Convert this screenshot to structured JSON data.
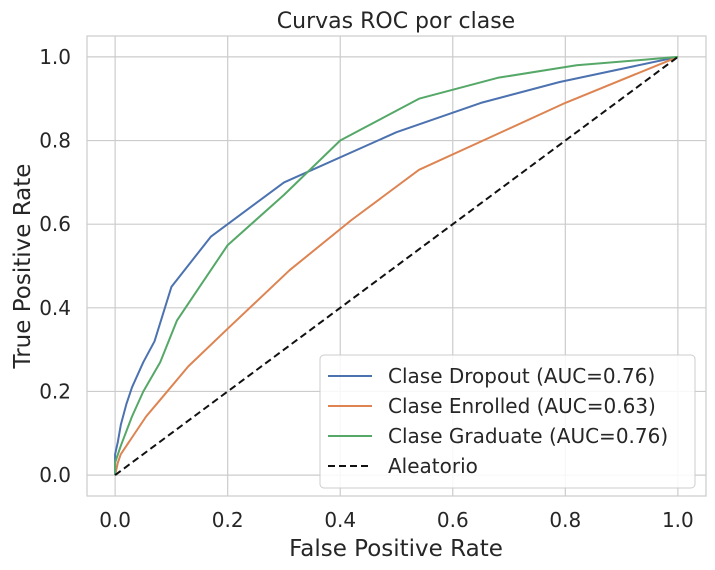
{
  "chart_data": {
    "type": "line",
    "title": "Curvas ROC por clase",
    "xlabel": "False Positive Rate",
    "ylabel": "True Positive Rate",
    "xlim": [
      -0.05,
      1.05
    ],
    "ylim": [
      -0.05,
      1.05
    ],
    "xticks": [
      "0.0",
      "0.2",
      "0.4",
      "0.6",
      "0.8",
      "1.0"
    ],
    "yticks": [
      "0.0",
      "0.2",
      "0.4",
      "0.6",
      "0.8",
      "1.0"
    ],
    "grid": true,
    "legend_position": "lower-right",
    "series": [
      {
        "name": "Clase Dropout (AUC=0.76)",
        "color": "#4c72b0",
        "dash": "solid",
        "x": [
          0.0,
          0.0,
          0.005,
          0.01,
          0.02,
          0.03,
          0.05,
          0.07,
          0.1,
          0.17,
          0.3,
          0.5,
          0.65,
          0.79,
          1.0
        ],
        "y": [
          0.0,
          0.05,
          0.08,
          0.12,
          0.17,
          0.21,
          0.27,
          0.32,
          0.45,
          0.57,
          0.7,
          0.82,
          0.89,
          0.94,
          1.0
        ]
      },
      {
        "name": "Clase Enrolled (AUC=0.63)",
        "color": "#dd8452",
        "dash": "solid",
        "x": [
          0.0,
          0.005,
          0.01,
          0.03,
          0.055,
          0.08,
          0.13,
          0.2,
          0.31,
          0.42,
          0.54,
          0.67,
          0.8,
          1.0
        ],
        "y": [
          0.0,
          0.03,
          0.05,
          0.09,
          0.14,
          0.18,
          0.26,
          0.35,
          0.49,
          0.61,
          0.73,
          0.81,
          0.89,
          1.0
        ]
      },
      {
        "name": "Clase Graduate (AUC=0.76)",
        "color": "#55a868",
        "dash": "solid",
        "x": [
          0.0,
          0.0,
          0.01,
          0.03,
          0.05,
          0.08,
          0.11,
          0.15,
          0.2,
          0.3,
          0.4,
          0.54,
          0.68,
          0.82,
          1.0
        ],
        "y": [
          0.0,
          0.03,
          0.07,
          0.14,
          0.2,
          0.27,
          0.37,
          0.45,
          0.55,
          0.67,
          0.8,
          0.9,
          0.95,
          0.98,
          1.0
        ]
      },
      {
        "name": "Aleatorio",
        "color": "#111111",
        "dash": "dashed",
        "x": [
          0.0,
          1.0
        ],
        "y": [
          0.0,
          1.0
        ]
      }
    ]
  }
}
